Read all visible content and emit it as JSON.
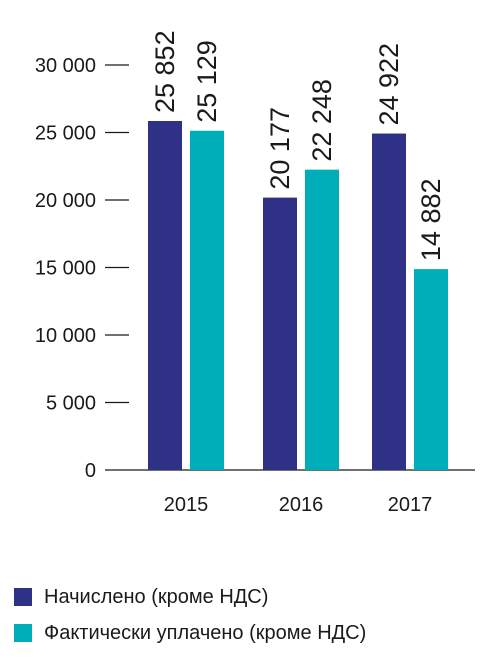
{
  "chart_data": {
    "type": "bar",
    "categories": [
      "2015",
      "2016",
      "2017"
    ],
    "series": [
      {
        "name": "Начислено (кроме НДС)",
        "values": [
          25852,
          20177,
          24922
        ],
        "color": "#2e3185",
        "labels": [
          "25 852",
          "20 177",
          "24 922"
        ]
      },
      {
        "name": "Фактически уплачено (кроме НДС)",
        "values": [
          25129,
          22248,
          14882
        ],
        "color": "#00aeb9",
        "labels": [
          "25 129",
          "22 248",
          "14 882"
        ]
      }
    ],
    "yticks": [
      0,
      5000,
      10000,
      15000,
      20000,
      25000,
      30000
    ],
    "ytick_labels": [
      "0",
      "5 000",
      "10 000",
      "15 000",
      "20 000",
      "25 000",
      "30 000"
    ],
    "ylim": [
      0,
      30000
    ],
    "grid": false,
    "legend_position": "bottom-left",
    "title": "",
    "xlabel": "",
    "ylabel": ""
  }
}
